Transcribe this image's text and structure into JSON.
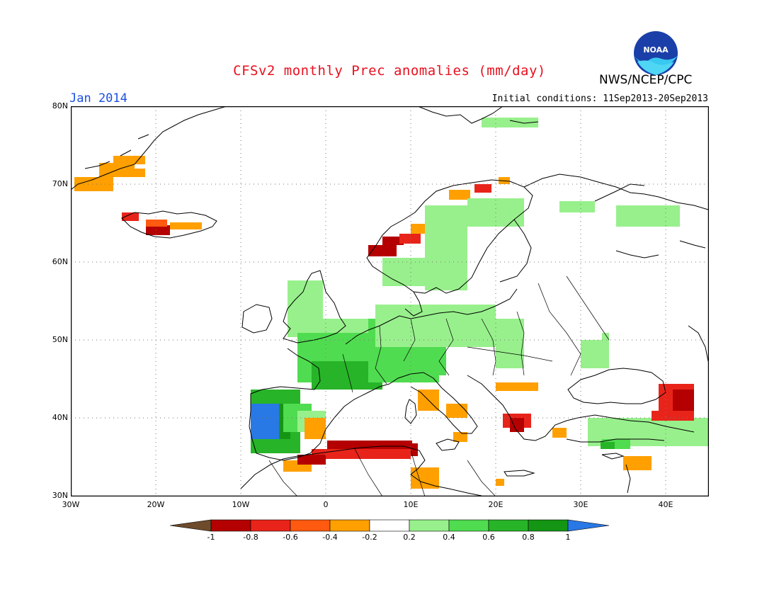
{
  "header": {
    "title": "CFSv2 monthly Prec anomalies (mm/day)",
    "agency": "NWS/NCEP/CPC",
    "valid_month": "Jan 2014",
    "initial_conditions_label": "Initial conditions:",
    "initial_conditions_range": "11Sep2013-20Sep2013",
    "logo_text": "NOAA"
  },
  "map": {
    "lat_labels": [
      "80N",
      "70N",
      "60N",
      "50N",
      "40N",
      "30N"
    ],
    "lon_labels": [
      "30W",
      "20W",
      "10W",
      "0",
      "10E",
      "20E",
      "30E",
      "40E"
    ],
    "lat_range": [
      30,
      80
    ],
    "lon_range": [
      -30,
      45
    ]
  },
  "colorbar": {
    "labels": [
      "-1",
      "-0.8",
      "-0.6",
      "-0.4",
      "-0.2",
      "0.2",
      "0.4",
      "0.6",
      "0.8",
      "1"
    ],
    "colors": [
      "#6e4b2a",
      "#b40000",
      "#e8241a",
      "#ff5a10",
      "#ffa000",
      "#ffffff",
      "#98f08c",
      "#50dc50",
      "#28b428",
      "#149614",
      "#2878e6"
    ]
  },
  "legend_colors": {
    "dry_extreme": "#6e4b2a",
    "dark_red": "#b40000",
    "red": "#e8241a",
    "orange_red": "#ff5a10",
    "orange": "#ffa000",
    "light_green": "#98f08c",
    "green": "#50dc50",
    "mid_green": "#28b428",
    "dark_green": "#149614",
    "blue": "#2878e6"
  }
}
